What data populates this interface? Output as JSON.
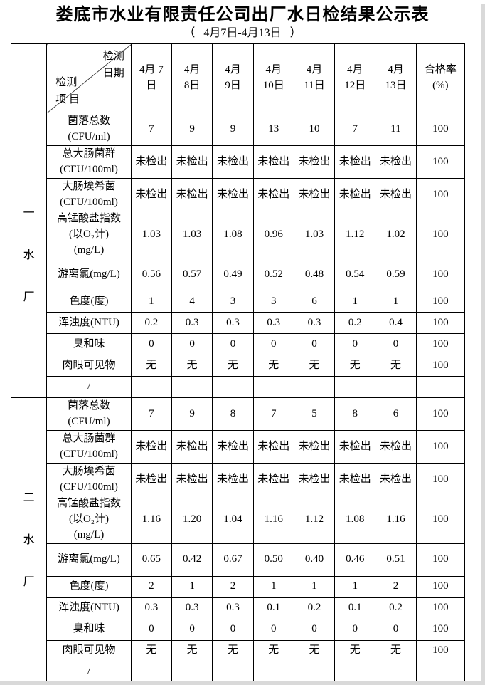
{
  "page": {
    "title": "娄底市水业有限责任公司出厂水日检结果公示表",
    "subtitle": "（   4月7日-4月13日   ）"
  },
  "table": {
    "corner": {
      "top_right": "检测\n日期",
      "bottom_left": "检测\n项 目"
    },
    "date_headers": [
      "4月 7\n日",
      "4月\n8日",
      "4月\n9日",
      "4月\n10日",
      "4月\n11日",
      "4月\n12日",
      "4月\n13日"
    ],
    "rate_header": "合格率\n(%)",
    "sections": [
      {
        "plant": "一水厂",
        "plant_chars": [
          "一",
          "水",
          "厂"
        ],
        "rows": [
          {
            "label": "菌落总数\n(CFU/ml)",
            "values": [
              "7",
              "9",
              "9",
              "13",
              "10",
              "7",
              "11"
            ],
            "rate": "100"
          },
          {
            "label": "总大肠菌群\n(CFU/100ml)",
            "values": [
              "未检出",
              "未检出",
              "未检出",
              "未检出",
              "未检出",
              "未检出",
              "未检出"
            ],
            "rate": "100"
          },
          {
            "label": "大肠埃希菌\n(CFU/100ml)",
            "values": [
              "未检出",
              "未检出",
              "未检出",
              "未检出",
              "未检出",
              "未检出",
              "未检出"
            ],
            "rate": "100"
          },
          {
            "label": "高锰酸盐指数\n(以O₂计)\n(mg/L)",
            "values": [
              "1.03",
              "1.03",
              "1.08",
              "0.96",
              "1.03",
              "1.12",
              "1.02"
            ],
            "rate": "100"
          },
          {
            "label": "游离氯(mg/L)",
            "values": [
              "0.56",
              "0.57",
              "0.49",
              "0.52",
              "0.48",
              "0.54",
              "0.59"
            ],
            "rate": "100"
          },
          {
            "label": "色度(度)",
            "values": [
              "1",
              "4",
              "3",
              "3",
              "6",
              "1",
              "1"
            ],
            "rate": "100"
          },
          {
            "label": "浑浊度(NTU)",
            "values": [
              "0.2",
              "0.3",
              "0.3",
              "0.3",
              "0.3",
              "0.2",
              "0.4"
            ],
            "rate": "100"
          },
          {
            "label": "臭和味",
            "values": [
              "0",
              "0",
              "0",
              "0",
              "0",
              "0",
              "0"
            ],
            "rate": "100"
          },
          {
            "label": "肉眼可见物",
            "values": [
              "无",
              "无",
              "无",
              "无",
              "无",
              "无",
              "无"
            ],
            "rate": "100"
          },
          {
            "label": "/",
            "values": [
              "",
              "",
              "",
              "",
              "",
              "",
              ""
            ],
            "rate": ""
          }
        ]
      },
      {
        "plant": "二水厂",
        "plant_chars": [
          "二",
          "水",
          "厂"
        ],
        "rows": [
          {
            "label": "菌落总数\n(CFU/ml)",
            "values": [
              "7",
              "9",
              "8",
              "7",
              "5",
              "8",
              "6"
            ],
            "rate": "100"
          },
          {
            "label": "总大肠菌群\n(CFU/100ml)",
            "values": [
              "未检出",
              "未检出",
              "未检出",
              "未检出",
              "未检出",
              "未检出",
              "未检出"
            ],
            "rate": "100"
          },
          {
            "label": "大肠埃希菌\n(CFU/100ml)",
            "values": [
              "未检出",
              "未检出",
              "未检出",
              "未检出",
              "未检出",
              "未检出",
              "未检出"
            ],
            "rate": "100"
          },
          {
            "label": "高锰酸盐指数\n(以O₂计)\n(mg/L)",
            "values": [
              "1.16",
              "1.20",
              "1.04",
              "1.16",
              "1.12",
              "1.08",
              "1.16"
            ],
            "rate": "100"
          },
          {
            "label": "游离氯(mg/L)",
            "values": [
              "0.65",
              "0.42",
              "0.67",
              "0.50",
              "0.40",
              "0.46",
              "0.51"
            ],
            "rate": "100"
          },
          {
            "label": "色度(度)",
            "values": [
              "2",
              "1",
              "2",
              "1",
              "1",
              "1",
              "2"
            ],
            "rate": "100"
          },
          {
            "label": "浑浊度(NTU)",
            "values": [
              "0.3",
              "0.3",
              "0.3",
              "0.1",
              "0.2",
              "0.1",
              "0.2"
            ],
            "rate": "100"
          },
          {
            "label": "臭和味",
            "values": [
              "0",
              "0",
              "0",
              "0",
              "0",
              "0",
              "0"
            ],
            "rate": "100"
          },
          {
            "label": "肉眼可见物",
            "values": [
              "无",
              "无",
              "无",
              "无",
              "无",
              "无",
              "无"
            ],
            "rate": "100"
          },
          {
            "label": "/",
            "values": [
              "",
              "",
              "",
              "",
              "",
              "",
              ""
            ],
            "rate": ""
          }
        ]
      }
    ]
  }
}
